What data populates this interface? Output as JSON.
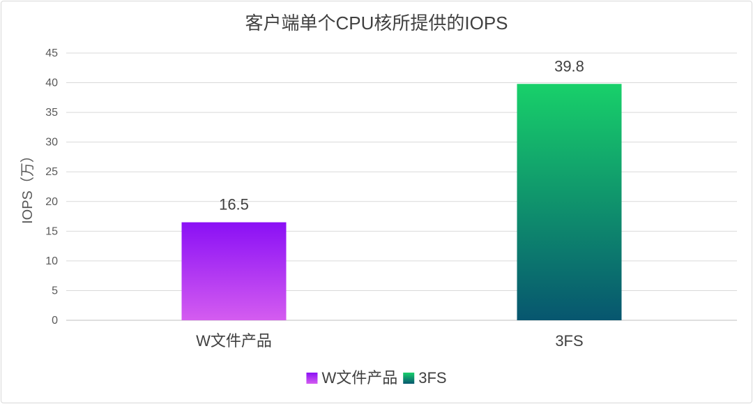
{
  "chart_data": {
    "type": "bar",
    "title": "客户端单个CPU核所提供的IOPS",
    "xlabel": "",
    "ylabel": "IOPS（万）",
    "categories": [
      "W文件产品",
      "3FS"
    ],
    "values": [
      16.5,
      39.8
    ],
    "data_labels": [
      "16.5",
      "39.8"
    ],
    "ylim": [
      0,
      45
    ],
    "y_ticks": [
      0,
      5,
      10,
      15,
      20,
      25,
      30,
      35,
      40,
      45
    ],
    "grid": true,
    "legend_position": "bottom",
    "legend": [
      "W文件产品",
      "3FS"
    ],
    "bar_colors": [
      {
        "top": "#8a10f5",
        "bottom": "#d45cf0"
      },
      {
        "top": "#18d06a",
        "bottom": "#07566f"
      }
    ]
  }
}
